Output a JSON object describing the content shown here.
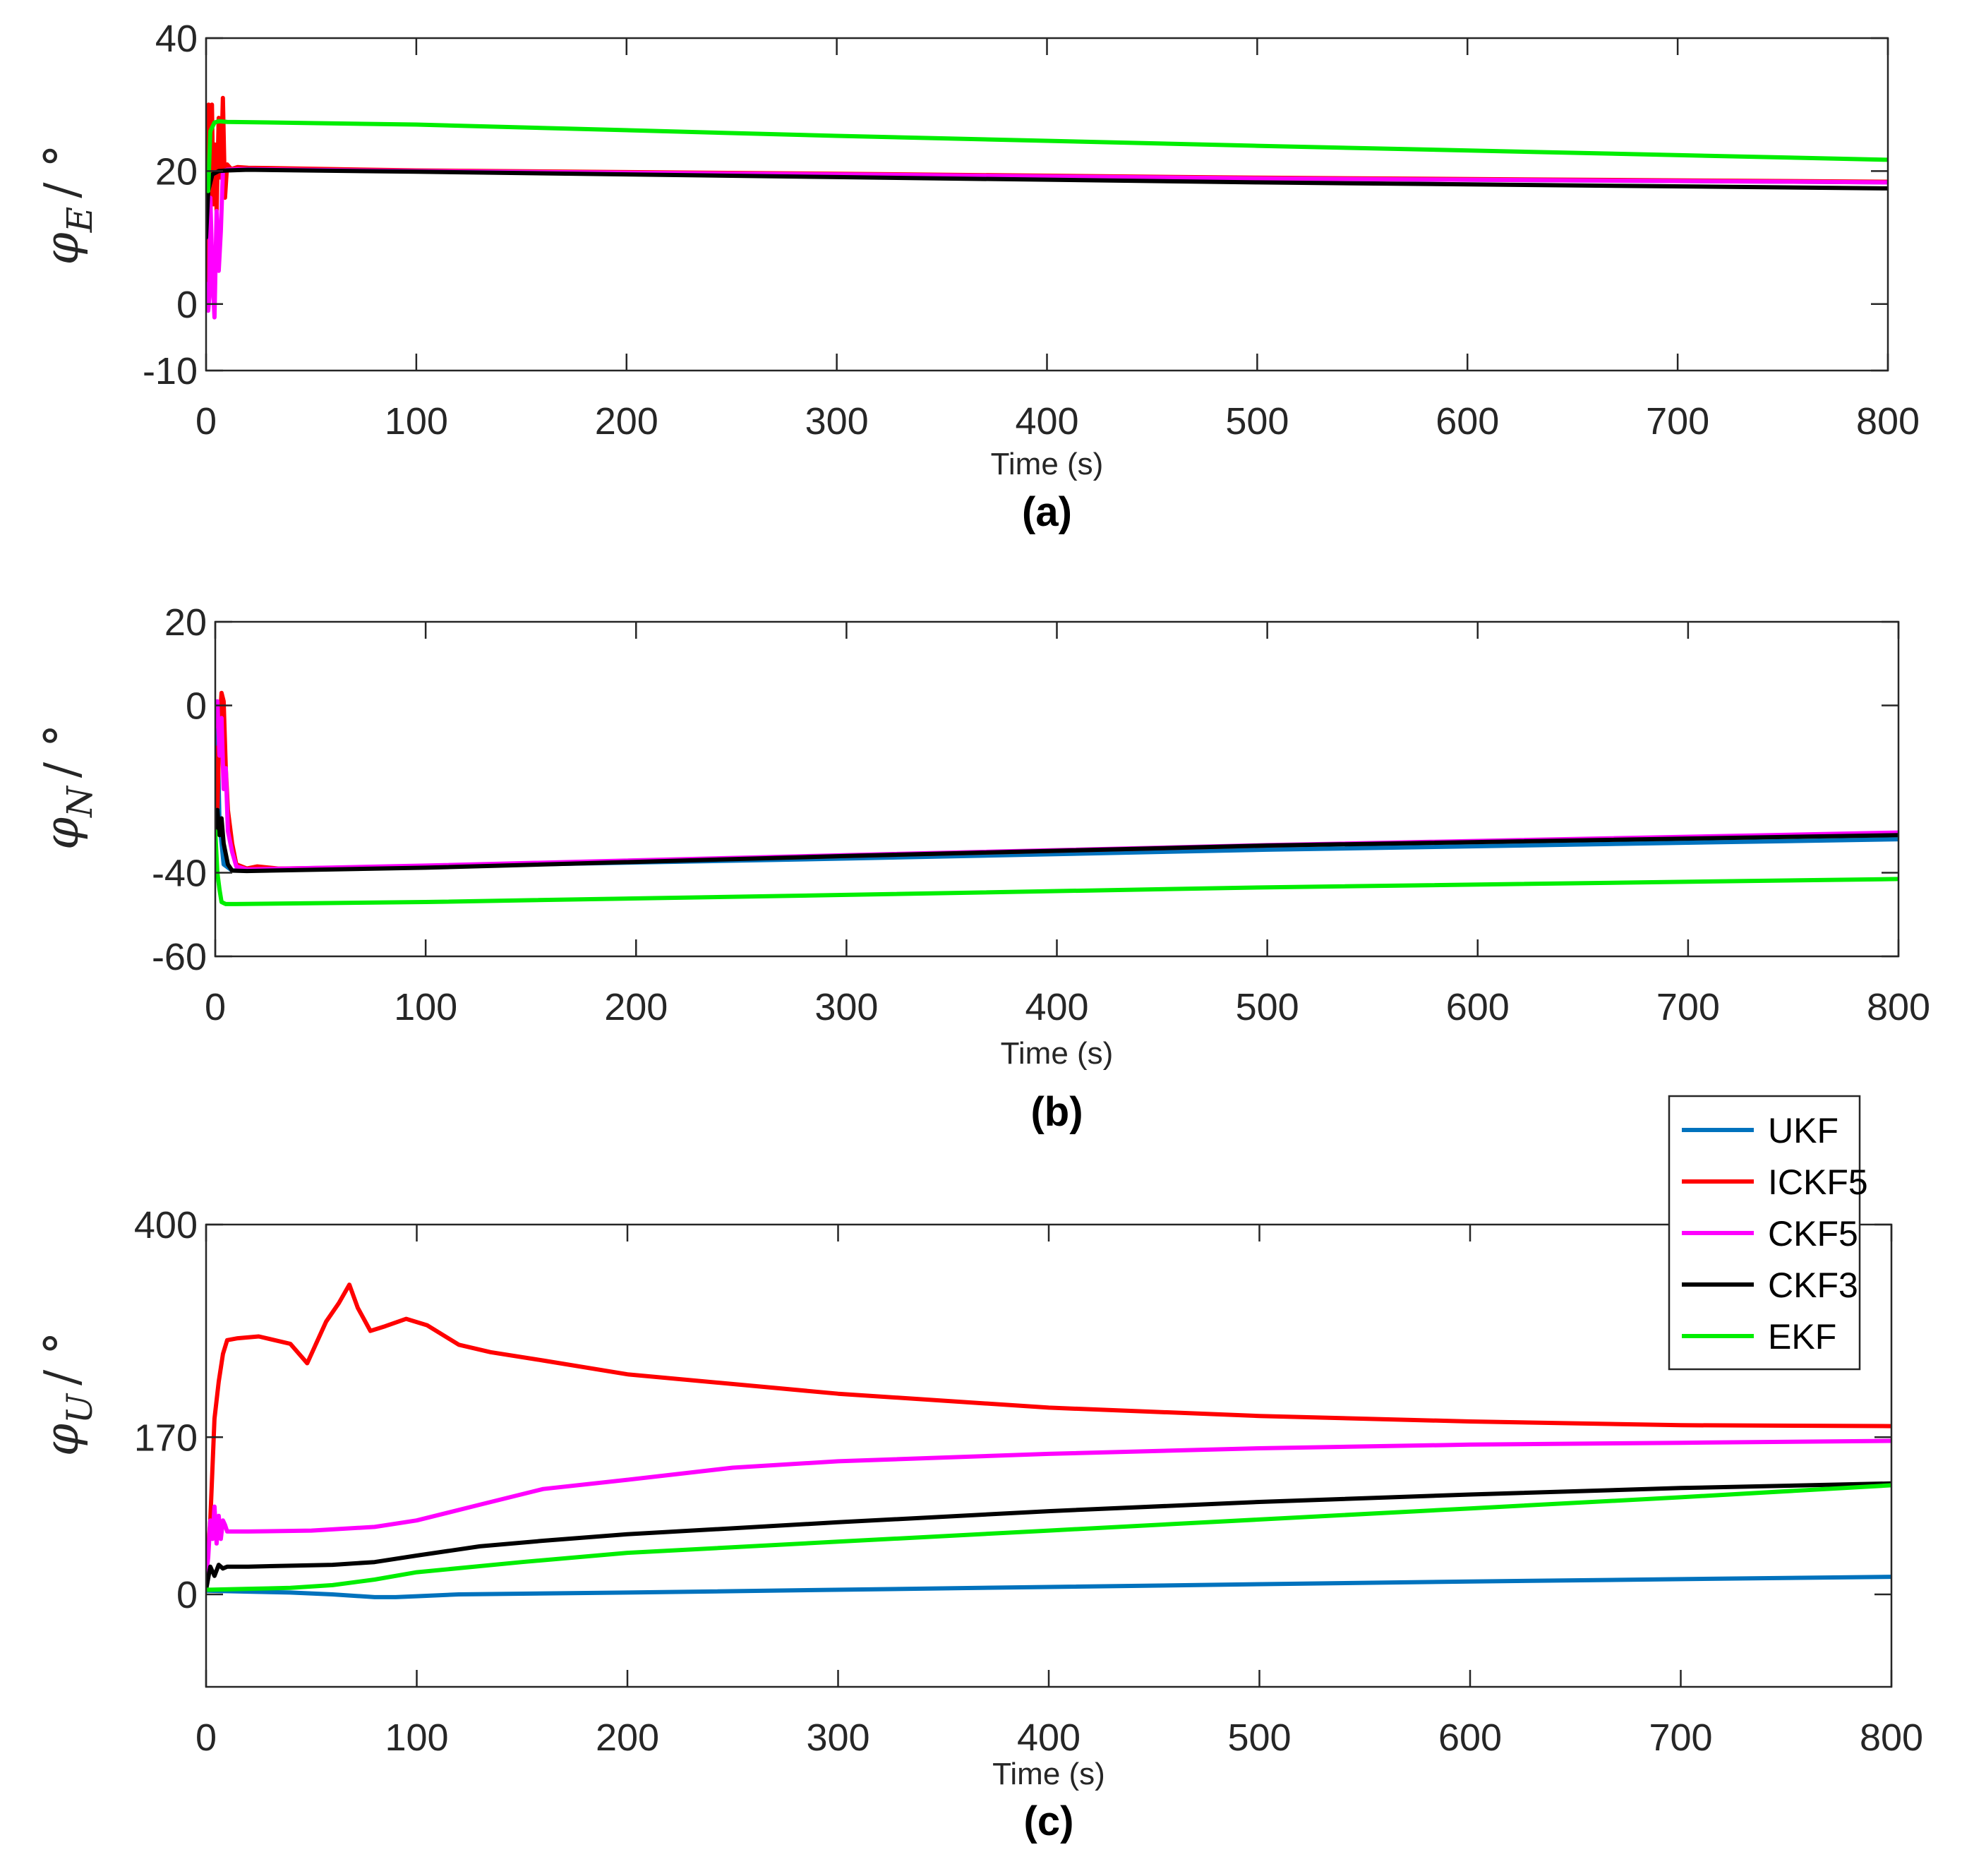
{
  "chart_data": [
    {
      "type": "line",
      "caption": "(a)",
      "xlabel": "Time (s)",
      "ylabel_symbol": "φ",
      "ylabel_sub": "E",
      "ylabel_unit": "/ °",
      "xlim": [
        0,
        800
      ],
      "ylim": [
        -10,
        40
      ],
      "xticks": [
        "0",
        "100",
        "200",
        "300",
        "400",
        "500",
        "600",
        "700",
        "800"
      ],
      "yticks": [
        "-10",
        "0",
        "20",
        "40"
      ],
      "series": [
        {
          "name": "UKF",
          "color": "#0072BD",
          "x": [
            0,
            1,
            3,
            6,
            12,
            20,
            100,
            300,
            500,
            800
          ],
          "y": [
            2,
            16,
            19.5,
            20.2,
            20.3,
            20.3,
            20.0,
            19.5,
            18.9,
            18.3
          ]
        },
        {
          "name": "ICKF5",
          "color": "#FF0000",
          "x": [
            0,
            0.5,
            1.2,
            2,
            2.8,
            3.5,
            4.2,
            5,
            6,
            7,
            8,
            9,
            10,
            12,
            15,
            20,
            100,
            300,
            500,
            800
          ],
          "y": [
            2,
            22,
            30,
            12,
            30,
            15,
            24,
            14,
            28,
            19,
            31,
            16,
            21,
            20.3,
            20.6,
            20.5,
            20.1,
            19.6,
            19.0,
            18.4
          ]
        },
        {
          "name": "CKF5",
          "color": "#FF00FF",
          "x": [
            0,
            0.5,
            1,
            1.5,
            2,
            3,
            4,
            5,
            6,
            7,
            8,
            10,
            15,
            20,
            100,
            300,
            500,
            800
          ],
          "y": [
            0,
            3,
            -1,
            1,
            16,
            5,
            -2,
            14,
            5,
            11,
            20,
            20.2,
            20.3,
            20.3,
            20.0,
            19.5,
            18.9,
            18.3
          ]
        },
        {
          "name": "CKF3",
          "color": "#000000",
          "x": [
            0,
            1,
            3,
            6,
            10,
            20,
            100,
            300,
            500,
            800
          ],
          "y": [
            10,
            17,
            19.5,
            20.0,
            20.1,
            20.2,
            19.9,
            19.1,
            18.3,
            17.4
          ]
        },
        {
          "name": "EKF",
          "color": "#00EE00",
          "x": [
            0,
            1,
            2,
            4,
            6,
            10,
            100,
            300,
            500,
            800
          ],
          "y": [
            18,
            17,
            26,
            27.3,
            27.5,
            27.4,
            27.0,
            25.3,
            23.8,
            21.7
          ]
        }
      ]
    },
    {
      "type": "line",
      "caption": "(b)",
      "xlabel": "Time (s)",
      "ylabel_symbol": "φ",
      "ylabel_sub": "N",
      "ylabel_unit": "/ °",
      "xlim": [
        0,
        800
      ],
      "ylim": [
        -60,
        20
      ],
      "xticks": [
        "0",
        "100",
        "200",
        "300",
        "400",
        "500",
        "600",
        "700",
        "800"
      ],
      "yticks": [
        "-60",
        "-40",
        "0",
        "20"
      ],
      "series": [
        {
          "name": "UKF",
          "color": "#0072BD",
          "x": [
            0,
            1,
            2,
            4,
            8,
            15,
            100,
            300,
            500,
            800
          ],
          "y": [
            -15,
            -5,
            -28,
            -38,
            -39.5,
            -39.3,
            -38.5,
            -36.6,
            -34.5,
            -32.0
          ]
        },
        {
          "name": "ICKF5",
          "color": "#FF0000",
          "x": [
            0,
            1,
            2,
            3,
            4,
            5,
            6,
            8,
            10,
            15,
            20,
            30,
            100,
            300,
            500,
            800
          ],
          "y": [
            -10,
            -25,
            -5,
            3,
            1,
            -15,
            -25,
            -33,
            -38,
            -39,
            -38.5,
            -39.0,
            -38.5,
            -36.0,
            -33.5,
            -30.5
          ]
        },
        {
          "name": "CKF5",
          "color": "#FF00FF",
          "x": [
            0,
            1,
            2,
            3,
            4,
            5,
            6,
            8,
            10,
            15,
            100,
            300,
            500,
            800
          ],
          "y": [
            -5,
            1,
            -12,
            -3,
            -20,
            -15,
            -30,
            -35,
            -38.5,
            -39.2,
            -38.3,
            -35.8,
            -33.4,
            -30.4
          ]
        },
        {
          "name": "CKF3",
          "color": "#000000",
          "x": [
            0,
            1,
            2,
            3,
            4,
            6,
            8,
            15,
            100,
            300,
            500,
            800
          ],
          "y": [
            -30,
            -25,
            -31,
            -27,
            -33,
            -38,
            -39.5,
            -39.6,
            -38.8,
            -36.0,
            -33.5,
            -31.0
          ]
        },
        {
          "name": "EKF",
          "color": "#00EE00",
          "x": [
            0,
            1,
            2,
            3,
            5,
            10,
            100,
            300,
            500,
            800
          ],
          "y": [
            -30,
            -40,
            -44,
            -47,
            -47.5,
            -47.5,
            -47.0,
            -45.3,
            -43.5,
            -41.5
          ]
        }
      ]
    },
    {
      "type": "line",
      "caption": "(c)",
      "xlabel": "Time (s)",
      "ylabel_symbol": "φ",
      "ylabel_sub": "U",
      "ylabel_unit": "/ °",
      "xlim": [
        0,
        800
      ],
      "ylim": [
        -100,
        400
      ],
      "xticks": [
        "0",
        "100",
        "200",
        "300",
        "400",
        "500",
        "600",
        "700",
        "800"
      ],
      "yticks": [
        "0",
        "170",
        "400"
      ],
      "legend_position": "top-right",
      "series": [
        {
          "name": "UKF",
          "color": "#0072BD",
          "x": [
            0,
            20,
            40,
            60,
            80,
            90,
            100,
            120,
            200,
            400,
            600,
            800
          ],
          "y": [
            4,
            3,
            2,
            0,
            -3,
            -3,
            -2,
            0,
            2,
            8,
            14,
            19
          ]
        },
        {
          "name": "ICKF5",
          "color": "#FF0000",
          "x": [
            0,
            2,
            4,
            6,
            8,
            10,
            15,
            25,
            40,
            48,
            52,
            57,
            63,
            68,
            72,
            78,
            85,
            95,
            105,
            120,
            135,
            160,
            200,
            300,
            400,
            500,
            600,
            700,
            800
          ],
          "y": [
            20,
            80,
            190,
            230,
            260,
            275,
            277,
            279,
            271,
            250,
            270,
            295,
            315,
            335,
            310,
            285,
            290,
            298,
            291,
            270,
            262,
            253,
            238,
            217,
            202,
            193,
            187,
            183,
            182
          ]
        },
        {
          "name": "CKF5",
          "color": "#FF00FF",
          "x": [
            0,
            1,
            2,
            3,
            4,
            5,
            6,
            7,
            8,
            9,
            10,
            12,
            20,
            50,
            80,
            100,
            130,
            160,
            200,
            250,
            300,
            400,
            500,
            600,
            700,
            800
          ],
          "y": [
            20,
            40,
            80,
            60,
            95,
            55,
            85,
            60,
            80,
            75,
            68,
            68,
            68,
            69,
            73,
            80,
            97,
            114,
            124,
            137,
            144,
            152,
            158,
            162,
            164,
            166
          ]
        },
        {
          "name": "CKF3",
          "color": "#000000",
          "x": [
            0,
            2,
            4,
            6,
            8,
            10,
            20,
            40,
            60,
            80,
            100,
            130,
            160,
            200,
            300,
            400,
            500,
            600,
            700,
            800
          ],
          "y": [
            5,
            30,
            20,
            32,
            28,
            30,
            30,
            31,
            32,
            35,
            42,
            52,
            58,
            65,
            78,
            90,
            100,
            108,
            115,
            120
          ]
        },
        {
          "name": "EKF",
          "color": "#00EE00",
          "x": [
            0,
            2,
            20,
            40,
            60,
            80,
            100,
            150,
            200,
            300,
            400,
            500,
            600,
            700,
            800
          ],
          "y": [
            5,
            5,
            6,
            7,
            10,
            16,
            24,
            35,
            45,
            57,
            69,
            81,
            93,
            105,
            118
          ]
        }
      ]
    }
  ]
}
